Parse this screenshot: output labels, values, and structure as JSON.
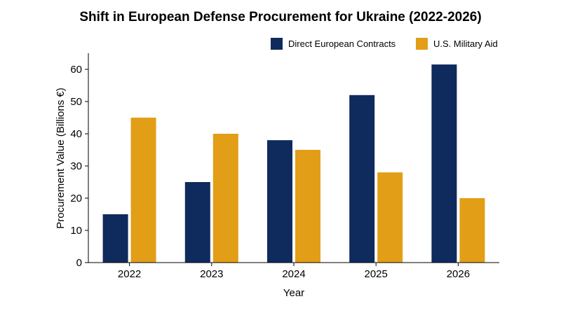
{
  "chart_data": {
    "type": "bar",
    "title": "Shift in European Defense Procurement for Ukraine (2022-2026)",
    "xlabel": "Year",
    "ylabel": "Procurement Value (Billions €)",
    "categories": [
      "2022",
      "2023",
      "2024",
      "2025",
      "2026"
    ],
    "series": [
      {
        "name": "Direct European Contracts",
        "color": "#0f2a5c",
        "values": [
          15,
          25,
          38,
          52,
          61.5
        ]
      },
      {
        "name": "U.S. Military Aid",
        "color": "#e39e17",
        "values": [
          45,
          40,
          35,
          28,
          20
        ]
      }
    ],
    "ylim": [
      0,
      65
    ],
    "yticks": [
      0,
      10,
      20,
      30,
      40,
      50,
      60
    ],
    "grid": false,
    "legend_position": "top-right"
  }
}
